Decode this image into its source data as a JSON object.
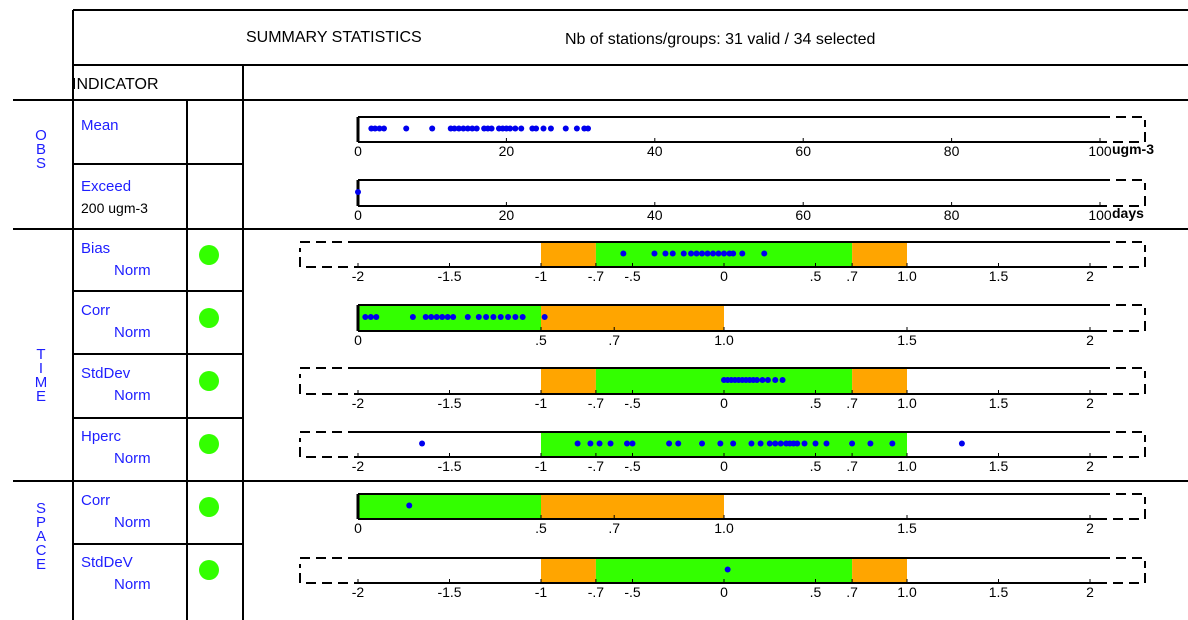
{
  "header": {
    "title": "SUMMARY STATISTICS",
    "stations": "Nb of stations/groups: 31 valid / 34 selected",
    "indicator_label": "INDICATOR"
  },
  "groups": {
    "obs": "OBS",
    "time": "TIME",
    "space": "SPACE"
  },
  "colors": {
    "green": "#33ff00",
    "orange": "#ffa500",
    "dot": "#0000ee",
    "label": "#1e1eff"
  },
  "rows": [
    {
      "label": "Mean",
      "sublabel": ""
    },
    {
      "label": "Exceed",
      "sublabel": "200 ugm-3"
    },
    {
      "label": "Bias",
      "sublabel": "Norm"
    },
    {
      "label": "Corr",
      "sublabel": "Norm"
    },
    {
      "label": "StdDev",
      "sublabel": "Norm"
    },
    {
      "label": "Hperc",
      "sublabel": "Norm"
    },
    {
      "label": "Corr",
      "sublabel": "Norm"
    },
    {
      "label": "StdDeV",
      "sublabel": "Norm"
    }
  ],
  "chart_data": [
    {
      "type": "scatter",
      "indicator": "Mean",
      "unit": "ugm-3",
      "xlim": [
        0,
        100
      ],
      "ticks": [
        "0",
        "20",
        "40",
        "60",
        "80",
        "100"
      ],
      "tick_values": [
        0,
        20,
        40,
        60,
        80,
        100
      ],
      "points": [
        1.8,
        2.3,
        2.9,
        3.5,
        6.5,
        10,
        12.5,
        13,
        13.6,
        14.2,
        14.8,
        15.4,
        16,
        17,
        17.5,
        18,
        19,
        19.5,
        20,
        20.5,
        21.2,
        22,
        23.5,
        24,
        25,
        26,
        28,
        29.5,
        30.5,
        31
      ]
    },
    {
      "type": "scatter",
      "indicator": "Exceed 200 ugm-3",
      "unit": "days",
      "xlim": [
        0,
        100
      ],
      "ticks": [
        "0",
        "20",
        "40",
        "60",
        "80",
        "100"
      ],
      "tick_values": [
        0,
        20,
        40,
        60,
        80,
        100
      ],
      "points": [
        0
      ]
    },
    {
      "type": "scatter",
      "indicator": "Bias Norm",
      "xlim": [
        -2,
        2
      ],
      "ticks": [
        "-2",
        "-1.5",
        "-1",
        "-.7",
        "-.5",
        "0",
        ".5",
        ".7",
        "1.0",
        "1.5",
        "2"
      ],
      "tick_values": [
        -2,
        -1.5,
        -1,
        -0.7,
        -0.5,
        0,
        0.5,
        0.7,
        1.0,
        1.5,
        2
      ],
      "bands": [
        {
          "from": -1,
          "to": -0.7,
          "color": "orange"
        },
        {
          "from": -0.7,
          "to": 0.7,
          "color": "green"
        },
        {
          "from": 0.7,
          "to": 1,
          "color": "orange"
        }
      ],
      "points": [
        -0.55,
        -0.38,
        -0.32,
        -0.28,
        -0.22,
        -0.18,
        -0.15,
        -0.12,
        -0.09,
        -0.06,
        -0.03,
        0,
        0.03,
        0.05,
        0.1,
        0.22
      ]
    },
    {
      "type": "scatter",
      "indicator": "Corr Norm",
      "xlim": [
        0,
        2
      ],
      "ticks": [
        "0",
        ".5",
        ".7",
        "1.0",
        "1.5",
        "2"
      ],
      "tick_values": [
        0,
        0.5,
        0.7,
        1.0,
        1.5,
        2
      ],
      "bands": [
        {
          "from": 0,
          "to": 0.5,
          "color": "green"
        },
        {
          "from": 0.5,
          "to": 1,
          "color": "orange"
        }
      ],
      "points": [
        0.02,
        0.035,
        0.05,
        0.15,
        0.185,
        0.2,
        0.215,
        0.23,
        0.245,
        0.26,
        0.3,
        0.33,
        0.35,
        0.37,
        0.39,
        0.41,
        0.43,
        0.45,
        0.51
      ]
    },
    {
      "type": "scatter",
      "indicator": "StdDev Norm",
      "xlim": [
        -2,
        2
      ],
      "ticks": [
        "-2",
        "-1.5",
        "-1",
        "-.7",
        "-.5",
        "0",
        ".5",
        ".7",
        "1.0",
        "1.5",
        "2"
      ],
      "tick_values": [
        -2,
        -1.5,
        -1,
        -0.7,
        -0.5,
        0,
        0.5,
        0.7,
        1.0,
        1.5,
        2
      ],
      "bands": [
        {
          "from": -1,
          "to": -0.7,
          "color": "orange"
        },
        {
          "from": -0.7,
          "to": 0.7,
          "color": "green"
        },
        {
          "from": 0.7,
          "to": 1,
          "color": "orange"
        }
      ],
      "points": [
        0,
        0.02,
        0.04,
        0.06,
        0.08,
        0.1,
        0.12,
        0.14,
        0.16,
        0.18,
        0.21,
        0.24,
        0.28,
        0.32
      ]
    },
    {
      "type": "scatter",
      "indicator": "Hperc Norm",
      "xlim": [
        -2,
        2
      ],
      "ticks": [
        "-2",
        "-1.5",
        "-1",
        "-.7",
        "-.5",
        "0",
        ".5",
        ".7",
        "1.0",
        "1.5",
        "2"
      ],
      "tick_values": [
        -2,
        -1.5,
        -1,
        -0.7,
        -0.5,
        0,
        0.5,
        0.7,
        1.0,
        1.5,
        2
      ],
      "bands": [
        {
          "from": -1,
          "to": 1,
          "color": "green"
        }
      ],
      "points": [
        -1.65,
        -0.8,
        -0.73,
        -0.68,
        -0.62,
        -0.53,
        -0.5,
        -0.3,
        -0.25,
        -0.12,
        -0.02,
        0.05,
        0.15,
        0.2,
        0.25,
        0.28,
        0.31,
        0.34,
        0.36,
        0.38,
        0.4,
        0.44,
        0.5,
        0.56,
        0.7,
        0.8,
        0.92,
        1.3
      ]
    },
    {
      "type": "scatter",
      "indicator": "Corr Norm",
      "xlim": [
        0,
        2
      ],
      "ticks": [
        "0",
        ".5",
        ".7",
        "1.0",
        "1.5",
        "2"
      ],
      "tick_values": [
        0,
        0.5,
        0.7,
        1.0,
        1.5,
        2
      ],
      "bands": [
        {
          "from": 0,
          "to": 0.5,
          "color": "green"
        },
        {
          "from": 0.5,
          "to": 1,
          "color": "orange"
        }
      ],
      "points": [
        0.14
      ]
    },
    {
      "type": "scatter",
      "indicator": "StdDeV Norm",
      "xlim": [
        -2,
        2
      ],
      "ticks": [
        "-2",
        "-1.5",
        "-1",
        "-.7",
        "-.5",
        "0",
        ".5",
        ".7",
        "1.0",
        "1.5",
        "2"
      ],
      "tick_values": [
        -2,
        -1.5,
        -1,
        -0.7,
        -0.5,
        0,
        0.5,
        0.7,
        1.0,
        1.5,
        2
      ],
      "bands": [
        {
          "from": -1,
          "to": -0.7,
          "color": "orange"
        },
        {
          "from": -0.7,
          "to": 0.7,
          "color": "green"
        },
        {
          "from": 0.7,
          "to": 1,
          "color": "orange"
        }
      ],
      "points": [
        0.02
      ]
    }
  ]
}
